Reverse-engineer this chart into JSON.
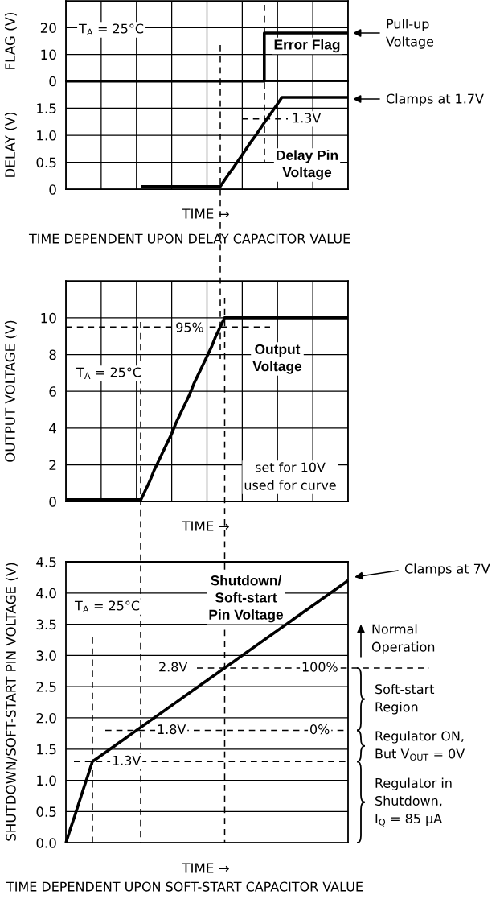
{
  "chart_data": [
    {
      "type": "line",
      "ylabel": "FLAG (V)",
      "categories": [
        null,
        null,
        null,
        null,
        null,
        null,
        null,
        null,
        null,
        null,
        null,
        null,
        null,
        null,
        null,
        null,
        null,
        null,
        null,
        null,
        null,
        null,
        null,
        null,
        null,
        null,
        null,
        null,
        null,
        null,
        null,
        null,
        null,
        null,
        null,
        null,
        null,
        null,
        null,
        null,
        null,
        null,
        null,
        null,
        null,
        null,
        null,
        null,
        null,
        null,
        null,
        null,
        null,
        null,
        null,
        null,
        null,
        null,
        null,
        null,
        null,
        null,
        null,
        null,
        null
      ],
      "ylim": [
        0,
        30
      ],
      "yticks": [
        0,
        10,
        20
      ],
      "grid": true,
      "tick_labels": "y",
      "series": [
        {
          "name": "Error Flag",
          "type": "step",
          "color": "#000000",
          "values": [
            0,
            0,
            0,
            0,
            0,
            0,
            0,
            0,
            0,
            0,
            0,
            0,
            0,
            0,
            0,
            0,
            0,
            0,
            0,
            0,
            0,
            0,
            0,
            0,
            0,
            0,
            0,
            0,
            0,
            0,
            0,
            0,
            0,
            0,
            0,
            0,
            0,
            0,
            0,
            0,
            0,
            0,
            0,
            0,
            0,
            18,
            18,
            18,
            18,
            18,
            18,
            18,
            18,
            18,
            18,
            18,
            18,
            18,
            18,
            18,
            18,
            18,
            18,
            18,
            18
          ]
        }
      ],
      "annotations": [
        "T$_{A}$ = 25°C",
        "Pull-up\nVoltage"
      ]
    },
    {
      "type": "line",
      "ylabel": "DELAY (V)",
      "xlabel": "TIME →",
      "categories": [
        null,
        null,
        null,
        null,
        null,
        null,
        null,
        null,
        null,
        null,
        null,
        null,
        null,
        null,
        null,
        null,
        null,
        null,
        null,
        null,
        null,
        null,
        null,
        null,
        null,
        null,
        null,
        null,
        null,
        null,
        null,
        null,
        null,
        null,
        null,
        null,
        null,
        null,
        null,
        null,
        null,
        null,
        null,
        null,
        null,
        null,
        null,
        null,
        null,
        null,
        null,
        null,
        null,
        null,
        null,
        null,
        null,
        null,
        null,
        null,
        null,
        null,
        null,
        null,
        null
      ],
      "ylim": [
        0,
        2
      ],
      "yticks": [
        0,
        0.5,
        {
          "value": 1,
          "label": "1.0"
        },
        1.5
      ],
      "grid": true,
      "tick_labels": "y",
      "series": [
        {
          "name": "Delay Pin\nVoltage",
          "color": "#000000",
          "values": [
            null,
            null,
            null,
            null,
            null,
            null,
            null,
            null,
            null,
            null,
            null,
            null,
            null,
            null,
            null,
            null,
            null,
            0.05,
            0.05,
            0.05,
            0.05,
            0.05,
            0.05,
            0.05,
            0.05,
            0.05,
            0.05,
            0.05,
            0.05,
            0.05,
            0.05,
            0.05,
            0.05,
            0.05,
            0.05,
            0.05,
            0.17,
            0.29,
            0.4,
            0.52,
            0.64,
            0.76,
            0.88,
            0.99,
            1.11,
            1.23,
            1.35,
            1.46,
            1.58,
            1.7,
            1.7,
            1.7,
            1.7,
            1.7,
            1.7,
            1.7,
            1.7,
            1.7,
            1.7,
            1.7,
            1.7,
            1.7,
            1.7,
            1.7,
            1.7
          ]
        }
      ],
      "ref_lines": [
        {
          "axis": "y",
          "value": 1.3,
          "label": "1.3V",
          "color": "#000000",
          "line_style": "dashed"
        }
      ],
      "annotations": [
        "Clamps at 1.7V",
        "TIME DEPENDENT UPON DELAY CAPACITOR VALUE"
      ]
    },
    {
      "type": "line",
      "ylabel": "OUTPUT VOLTAGE (V)",
      "xlabel": "TIME →",
      "categories": [
        null,
        null,
        null,
        null,
        null,
        null,
        null,
        null,
        null,
        null,
        null,
        null,
        null,
        null,
        null,
        null,
        null,
        null,
        null,
        null,
        null,
        null,
        null,
        null,
        null,
        null,
        null,
        null,
        null,
        null,
        null,
        null,
        null,
        null,
        null,
        null,
        null,
        null,
        null,
        null,
        null,
        null,
        null,
        null,
        null,
        null,
        null,
        null,
        null,
        null,
        null,
        null,
        null,
        null,
        null,
        null,
        null,
        null,
        null,
        null,
        null,
        null,
        null,
        null,
        null
      ],
      "ylim": [
        0,
        12
      ],
      "yticks": [
        0,
        2,
        4,
        6,
        8,
        10
      ],
      "grid": true,
      "tick_labels": "y",
      "series": [
        {
          "name": "Output\nVoltage",
          "color": "#000000",
          "values": [
            0.1,
            0.1,
            0.1,
            0.1,
            0.1,
            0.1,
            0.1,
            0.1,
            0.1,
            0.1,
            0.1,
            0.1,
            0.1,
            0.1,
            0.1,
            0.1,
            0.1,
            0.1,
            0.6,
            1.1,
            1.7,
            2.2,
            2.7,
            3.2,
            3.7,
            4.3,
            4.8,
            5.3,
            5.8,
            6.4,
            6.9,
            7.4,
            7.9,
            8.4,
            9.0,
            9.5,
            10,
            10,
            10,
            10,
            10,
            10,
            10,
            10,
            10,
            10,
            10,
            10,
            10,
            10,
            10,
            10,
            10,
            10,
            10,
            10,
            10,
            10,
            10,
            10,
            10,
            10,
            10,
            10,
            10
          ]
        }
      ],
      "ref_lines": [
        {
          "axis": "y",
          "value": 9.5,
          "color": "#000000",
          "line_style": "dashed"
        }
      ],
      "annotations": [
        "T$_{A}$ = 25°C",
        "set for 10V\nused for curve",
        "95%"
      ]
    },
    {
      "type": "line",
      "ylabel": "SHUTDOWN/SOFT-START PIN VOLTAGE (V)",
      "xlabel": "TIME →",
      "categories": [
        null,
        null,
        null,
        null,
        null,
        null,
        null,
        null,
        null,
        null,
        null,
        null,
        null,
        null,
        null,
        null,
        null,
        null,
        null,
        null,
        null,
        null,
        null,
        null,
        null,
        null,
        null,
        null,
        null,
        null,
        null,
        null,
        null,
        null,
        null,
        null,
        null,
        null,
        null,
        null,
        null,
        null,
        null,
        null,
        null,
        null,
        null,
        null,
        null,
        null,
        null,
        null,
        null,
        null,
        null,
        null,
        null,
        null,
        null,
        null,
        null,
        null,
        null,
        null,
        null
      ],
      "ylim": [
        0,
        4.5
      ],
      "yticks": [
        {
          "value": 0,
          "label": "0.0"
        },
        0.5,
        {
          "value": 1,
          "label": "1.0"
        },
        1.5,
        {
          "value": 2,
          "label": "2.0"
        },
        2.5,
        {
          "value": 3,
          "label": "3.0"
        },
        3.5,
        {
          "value": 4,
          "label": "4.0"
        },
        4.5
      ],
      "grid": "y",
      "tick_labels": "y",
      "series": [
        {
          "name": "Shutdown/\nSoft-start\nPin Voltage",
          "color": "#000000",
          "values": [
            0,
            0.22,
            0.43,
            0.65,
            0.87,
            1.08,
            1.3,
            1.35,
            1.4,
            1.45,
            1.5,
            1.55,
            1.6,
            1.65,
            1.7,
            1.75,
            1.8,
            1.85,
            1.9,
            1.95,
            2.0,
            2.05,
            2.1,
            2.15,
            2.2,
            2.25,
            2.3,
            2.35,
            2.4,
            2.45,
            2.5,
            2.55,
            2.6,
            2.65,
            2.7,
            2.75,
            2.8,
            2.85,
            2.9,
            2.95,
            3.0,
            3.05,
            3.1,
            3.15,
            3.2,
            3.25,
            3.3,
            3.35,
            3.4,
            3.45,
            3.5,
            3.55,
            3.6,
            3.65,
            3.7,
            3.75,
            3.8,
            3.85,
            3.9,
            3.95,
            4.0,
            4.05,
            4.1,
            4.15,
            4.2
          ]
        }
      ],
      "ref_lines": [
        {
          "axis": "y",
          "value": 1.3,
          "label": "1.3V",
          "color": "#000000",
          "line_style": "dashed"
        },
        {
          "axis": "y",
          "value": 1.8,
          "label": "1.8V",
          "color": "#000000",
          "line_style": "dashed"
        },
        {
          "axis": "y",
          "value": 2.8,
          "label": "2.8V",
          "color": "#000000",
          "line_style": "dashed"
        }
      ],
      "annotations": [
        "T$_{A}$ = 25°C",
        "Clamps at 7V",
        "Normal\nOperation",
        "0%",
        "100%",
        "TIME DEPENDENT UPON SOFT-START CAPACITOR VALUE",
        "Regulator in\nShutdown,\nI$_{Q}$ = 85 μA",
        "Regulator ON,\nBut V$_{OUT}$ = 0V",
        "Soft-start\nRegion"
      ]
    }
  ]
}
